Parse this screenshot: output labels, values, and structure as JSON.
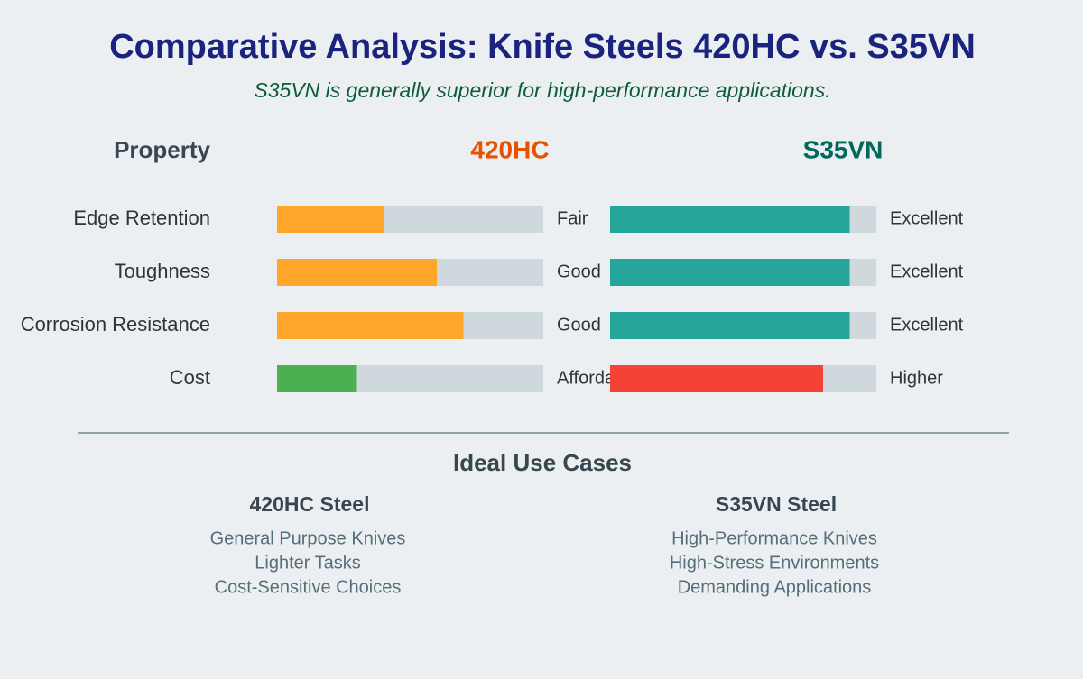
{
  "header": {
    "title": "Comparative Analysis: Knife Steels 420HC vs. S35VN",
    "subtitle": "S35VN is generally superior for high-performance applications."
  },
  "comparison": {
    "property_header": "Property",
    "steels": [
      {
        "name": "420HC",
        "color": "#e65100"
      },
      {
        "name": "S35VN",
        "color": "#00695c"
      }
    ],
    "rows": [
      {
        "property": "Edge Retention",
        "ratings": [
          {
            "value": 40,
            "label": "Fair",
            "color": "#ffa72b"
          },
          {
            "value": 90,
            "label": "Excellent",
            "color": "#26a69a"
          }
        ]
      },
      {
        "property": "Toughness",
        "ratings": [
          {
            "value": 60,
            "label": "Good",
            "color": "#ffa72b"
          },
          {
            "value": 90,
            "label": "Excellent",
            "color": "#26a69a"
          }
        ]
      },
      {
        "property": "Corrosion Resistance",
        "ratings": [
          {
            "value": 70,
            "label": "Good",
            "color": "#ffa72b"
          },
          {
            "value": 90,
            "label": "Excellent",
            "color": "#26a69a"
          }
        ]
      },
      {
        "property": "Cost",
        "ratings": [
          {
            "value": 30,
            "label": "Affordable",
            "color": "#4caf50"
          },
          {
            "value": 80,
            "label": "Higher",
            "color": "#f44336"
          }
        ]
      }
    ]
  },
  "use_cases": {
    "title": "Ideal Use Cases",
    "columns": [
      {
        "heading": "420HC Steel",
        "items": [
          "General Purpose Knives",
          "Lighter Tasks",
          "Cost-Sensitive Choices"
        ]
      },
      {
        "heading": "S35VN Steel",
        "items": [
          "High-Performance Knives",
          "High-Stress Environments",
          "Demanding Applications"
        ]
      }
    ]
  }
}
